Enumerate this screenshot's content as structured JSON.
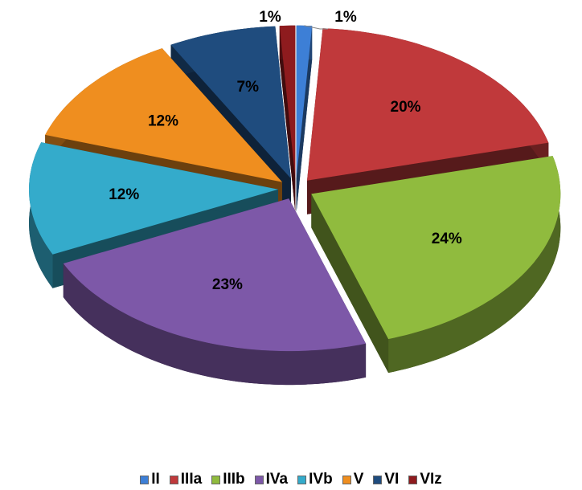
{
  "chart_data": {
    "type": "pie",
    "categories": [
      "II",
      "IIIa",
      "IIIb",
      "IVa",
      "IVb",
      "V",
      "VI",
      "VIz"
    ],
    "values": [
      1,
      20,
      24,
      23,
      12,
      12,
      7,
      1
    ],
    "value_labels": [
      "1%",
      "20%",
      "24%",
      "23%",
      "12%",
      "12%",
      "7%",
      "1%"
    ],
    "colors": [
      "#3d7fd6",
      "#c0393b",
      "#90bb3e",
      "#7d58a8",
      "#34abcb",
      "#ef8e1f",
      "#1f4c7e",
      "#8e1b1e"
    ],
    "legend": "bottom"
  }
}
